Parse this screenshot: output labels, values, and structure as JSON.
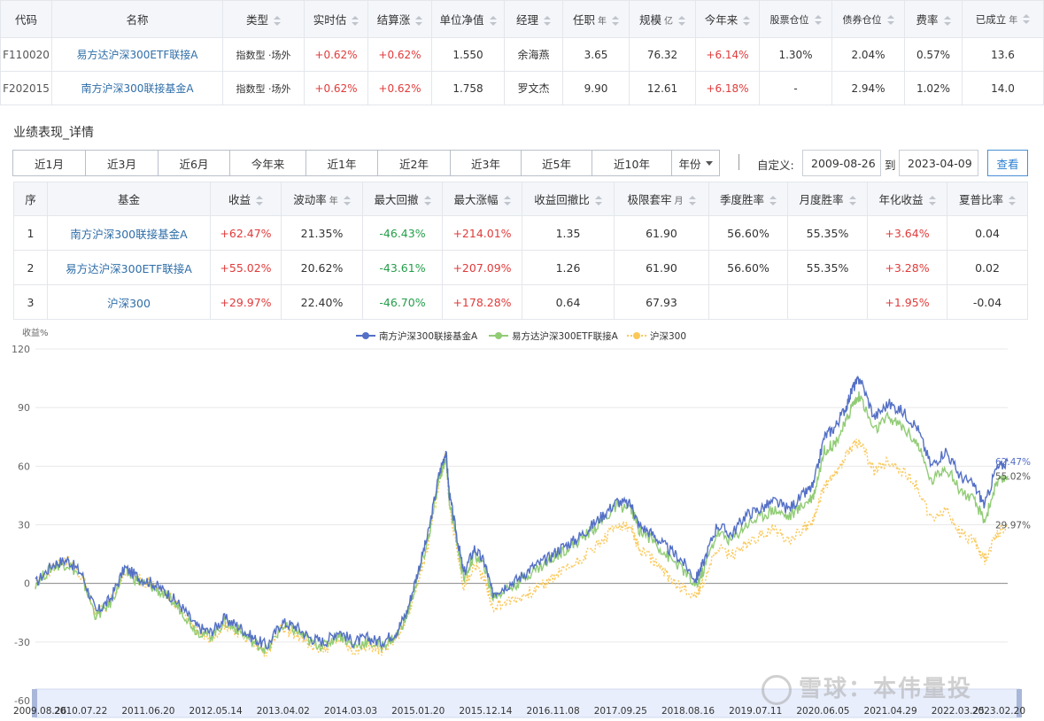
{
  "fund_table": {
    "headers": [
      "代码",
      "名称",
      "类型",
      "实时估",
      "结算涨",
      "单位净值",
      "经理",
      "任职",
      "规模",
      "今年来",
      "股票仓位",
      "债券仓位",
      "费率",
      "已成立"
    ],
    "units": {
      "tenure": "年",
      "scale": "亿",
      "established": "年"
    },
    "rows": [
      {
        "code": "F110020",
        "name": "易方达沪深300ETF联接A",
        "type": "指数型 ·场外",
        "est": "+0.62%",
        "settle": "+0.62%",
        "nav": "1.550",
        "manager": "余海燕",
        "tenure": "3.65",
        "scale": "76.32",
        "ytd": "+6.14%",
        "stock": "1.30%",
        "bond": "2.04%",
        "fee": "0.57%",
        "established": "13.6"
      },
      {
        "code": "F202015",
        "name": "南方沪深300联接基金A",
        "type": "指数型 ·场外",
        "est": "+0.62%",
        "settle": "+0.62%",
        "nav": "1.758",
        "manager": "罗文杰",
        "tenure": "9.90",
        "scale": "12.61",
        "ytd": "+6.18%",
        "stock": "-",
        "bond": "2.94%",
        "fee": "1.02%",
        "established": "14.0"
      }
    ]
  },
  "performance": {
    "title": "业绩表现_详情",
    "periods": [
      "近1月",
      "近3月",
      "近6月",
      "今年来",
      "近1年",
      "近2年",
      "近3年",
      "近5年",
      "近10年",
      "年份"
    ],
    "custom_label": "自定义:",
    "start_date": "2009-08-26",
    "to_label": "到",
    "end_date": "2023-04-09",
    "query_label": "查看",
    "headers": [
      "序",
      "基金",
      "收益",
      "波动率",
      "最大回撤",
      "最大涨幅",
      "收益回撤比",
      "极限套牢",
      "季度胜率",
      "月度胜率",
      "年化收益",
      "夏普比率"
    ],
    "units": {
      "volatility": "年",
      "trap": "月"
    },
    "rows": [
      {
        "idx": "1",
        "name": "南方沪深300联接基金A",
        "ret": "+62.47%",
        "vol": "21.35%",
        "mdd": "-46.43%",
        "mup": "+214.01%",
        "ratio": "1.35",
        "trap": "61.90",
        "qwin": "56.60%",
        "mwin": "55.35%",
        "ann": "+3.64%",
        "sharpe": "0.04"
      },
      {
        "idx": "2",
        "name": "易方达沪深300ETF联接A",
        "ret": "+55.02%",
        "vol": "20.62%",
        "mdd": "-43.61%",
        "mup": "+207.09%",
        "ratio": "1.26",
        "trap": "61.90",
        "qwin": "56.60%",
        "mwin": "55.35%",
        "ann": "+3.28%",
        "sharpe": "0.02"
      },
      {
        "idx": "3",
        "name": "沪深300",
        "ret": "+29.97%",
        "vol": "22.40%",
        "mdd": "-46.70%",
        "mup": "+178.28%",
        "ratio": "0.64",
        "trap": "67.93",
        "qwin": "",
        "mwin": "",
        "ann": "+1.95%",
        "sharpe": "-0.04"
      }
    ]
  },
  "chart_data": {
    "type": "line",
    "ylabel": "收益%",
    "ylim": [
      -60,
      120
    ],
    "yticks": [
      120,
      90,
      60,
      30,
      0,
      -30,
      -60
    ],
    "xticks": [
      "2009.08.26",
      "2010.07.22",
      "2011.06.20",
      "2012.05.14",
      "2013.04.02",
      "2014.03.03",
      "2015.01.20",
      "2015.12.14",
      "2016.11.08",
      "2017.09.25",
      "2018.08.16",
      "2019.07.11",
      "2020.06.05",
      "2021.04.29",
      "2022.03.25",
      "2023.02.20"
    ],
    "legend_position": "top-center",
    "x": [
      2009.65,
      2009.9,
      2010.1,
      2010.3,
      2010.5,
      2010.7,
      2010.9,
      2011.1,
      2011.3,
      2011.5,
      2011.7,
      2011.9,
      2012.1,
      2012.3,
      2012.5,
      2012.7,
      2012.9,
      2013.1,
      2013.3,
      2013.5,
      2013.7,
      2013.9,
      2014.1,
      2014.3,
      2014.5,
      2014.7,
      2014.85,
      2015.0,
      2015.15,
      2015.3,
      2015.4,
      2015.45,
      2015.55,
      2015.65,
      2015.8,
      2015.95,
      2016.05,
      2016.2,
      2016.4,
      2016.6,
      2016.8,
      2017.0,
      2017.2,
      2017.4,
      2017.6,
      2017.8,
      2018.0,
      2018.1,
      2018.3,
      2018.5,
      2018.7,
      2018.9,
      2019.0,
      2019.2,
      2019.4,
      2019.6,
      2019.8,
      2020.0,
      2020.2,
      2020.4,
      2020.55,
      2020.7,
      2020.85,
      2021.0,
      2021.1,
      2021.2,
      2021.4,
      2021.6,
      2021.8,
      2022.0,
      2022.2,
      2022.4,
      2022.6,
      2022.8,
      2022.95,
      2023.1,
      2023.27
    ],
    "series": [
      {
        "name": "南方沪深300联接基金A",
        "color": "#5470c6",
        "values": [
          0,
          10,
          12,
          5,
          -15,
          -8,
          8,
          3,
          0,
          -5,
          -12,
          -22,
          -25,
          -18,
          -22,
          -28,
          -32,
          -20,
          -22,
          -28,
          -30,
          -24,
          -30,
          -28,
          -30,
          -25,
          -15,
          5,
          25,
          55,
          68,
          45,
          25,
          5,
          18,
          10,
          -5,
          -2,
          2,
          8,
          12,
          18,
          22,
          28,
          35,
          42,
          40,
          30,
          25,
          18,
          12,
          2,
          10,
          30,
          25,
          35,
          38,
          42,
          38,
          45,
          50,
          75,
          80,
          90,
          100,
          105,
          85,
          92,
          88,
          80,
          60,
          68,
          55,
          50,
          40,
          58,
          62.47
        ]
      },
      {
        "name": "易方达沪深300ETF联接A",
        "color": "#91cc75",
        "values": [
          0,
          9,
          10,
          3,
          -17,
          -10,
          6,
          1,
          -2,
          -7,
          -14,
          -24,
          -27,
          -20,
          -24,
          -30,
          -34,
          -22,
          -24,
          -30,
          -32,
          -26,
          -32,
          -30,
          -32,
          -27,
          -17,
          2,
          22,
          52,
          65,
          42,
          22,
          2,
          15,
          8,
          -7,
          -4,
          0,
          6,
          10,
          16,
          20,
          26,
          32,
          40,
          38,
          28,
          22,
          14,
          8,
          -2,
          6,
          26,
          22,
          30,
          34,
          38,
          34,
          40,
          45,
          68,
          72,
          82,
          92,
          96,
          78,
          85,
          80,
          72,
          52,
          60,
          48,
          42,
          32,
          50,
          55.02
        ]
      },
      {
        "name": "沪深300",
        "color": "#fac858",
        "values": [
          0,
          8,
          12,
          4,
          -16,
          -10,
          6,
          2,
          -1,
          -6,
          -14,
          -24,
          -28,
          -21,
          -25,
          -31,
          -35,
          -23,
          -26,
          -32,
          -34,
          -28,
          -34,
          -32,
          -34,
          -28,
          -18,
          0,
          20,
          50,
          66,
          40,
          18,
          -2,
          10,
          2,
          -12,
          -10,
          -8,
          -4,
          0,
          6,
          10,
          16,
          22,
          30,
          28,
          18,
          12,
          4,
          -2,
          -6,
          0,
          18,
          14,
          20,
          24,
          28,
          22,
          28,
          32,
          50,
          55,
          65,
          70,
          72,
          58,
          62,
          58,
          50,
          32,
          38,
          26,
          22,
          12,
          25,
          29.97
        ]
      }
    ],
    "end_labels": [
      "62.47%",
      "55.02%",
      "29.97%"
    ]
  },
  "watermark": {
    "text": "雪球：本伟量投"
  }
}
